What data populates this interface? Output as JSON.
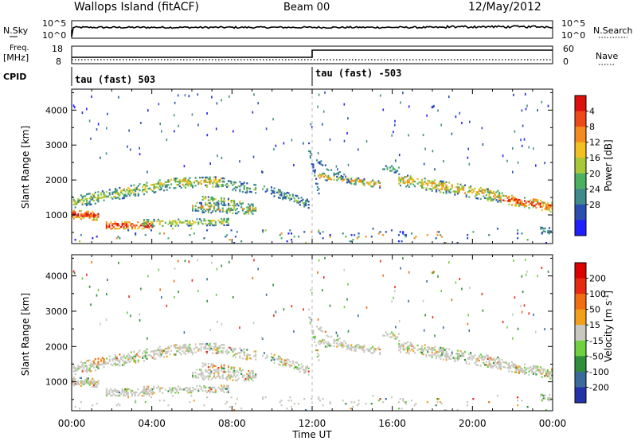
{
  "header": {
    "title": "Wallops Island (fitACF)",
    "beam": "Beam 00",
    "date": "12/May/2012"
  },
  "top_panels": {
    "nsky_label": "N.Sky",
    "nsearch_label": "N.Search",
    "noise_ticks": [
      "10^5",
      "10^0"
    ],
    "freq_label_1": "Freq.",
    "freq_label_2": "[MHz]",
    "freq_ticks": [
      "18",
      "8"
    ],
    "nave_label": "Nave",
    "nave_ticks": [
      "60",
      "0"
    ],
    "cpid_label": "CPID",
    "cpid_segments": [
      "tau (fast) 503",
      "tau (fast) -503"
    ]
  },
  "chart_data": [
    {
      "type": "heatmap",
      "panel": "power",
      "ylabel": "Slant Range [km]",
      "xlabel": "",
      "ylim": [
        180,
        4600
      ],
      "yticks": [
        1000,
        2000,
        3000,
        4000
      ],
      "x_tick_labels": [
        "00:00",
        "04:00",
        "08:00",
        "12:00",
        "16:00",
        "20:00",
        "00:00"
      ],
      "colorbar": {
        "label": "Power [dB]",
        "ticks": [
          "4",
          "8",
          "12",
          "16",
          "20",
          "24",
          "28"
        ],
        "colors": [
          "#1f1fff",
          "#2a4fb0",
          "#3f8a8a",
          "#4bb060",
          "#a8c83a",
          "#f2c020",
          "#f58a1e",
          "#ee4a18",
          "#dd1010"
        ]
      }
    },
    {
      "type": "heatmap",
      "panel": "velocity",
      "ylabel": "Slant Range [km]",
      "xlabel": "Time UT",
      "ylim": [
        180,
        4600
      ],
      "yticks": [
        1000,
        2000,
        3000,
        4000
      ],
      "x_tick_labels": [
        "00:00",
        "04:00",
        "08:00",
        "12:00",
        "16:00",
        "20:00",
        "00:00"
      ],
      "colorbar": {
        "label": "Velocity [m s",
        "label_exp": "-1",
        "label_end": "]",
        "ticks": [
          "200",
          "100",
          "50",
          "15",
          "-15",
          "-50",
          "-100",
          "-200"
        ],
        "colors": [
          "#2233aa",
          "#3a6b9a",
          "#2f8f3a",
          "#6fd040",
          "#c8c8c0",
          "#f2a01c",
          "#f06e10",
          "#e82a10",
          "#dd0000"
        ]
      }
    }
  ]
}
